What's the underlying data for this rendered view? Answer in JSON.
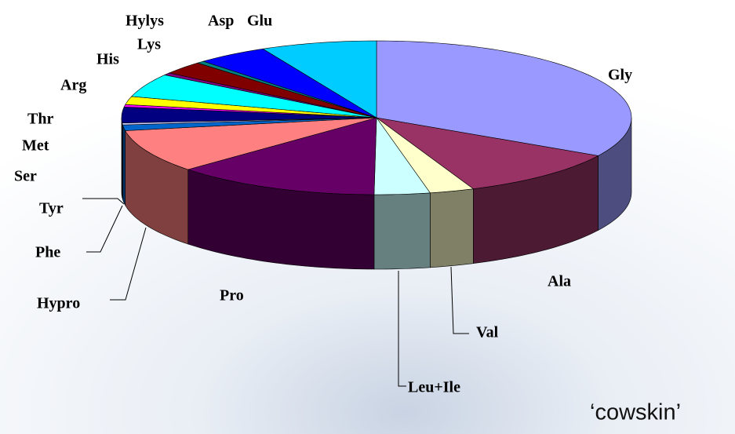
{
  "chart_data": {
    "type": "pie3d",
    "categories": [
      "Gly",
      "Ala",
      "Val",
      "Leu+Ile",
      "Pro",
      "Hypro",
      "Phe",
      "Tyr",
      "Ser",
      "Met",
      "Thr",
      "Arg",
      "His",
      "Lys",
      "Hylys",
      "Asp",
      "Glu"
    ],
    "values": [
      33,
      10.5,
      2.8,
      3.5,
      13,
      9,
      1.2,
      0.4,
      3.3,
      0.5,
      1.7,
      4.9,
      0.5,
      2.7,
      0.5,
      4.5,
      7.3
    ],
    "colors": [
      "#9999ff",
      "#993366",
      "#ffffcc",
      "#ccffff",
      "#660066",
      "#ff8080",
      "#0066cc",
      "#ccccff",
      "#000080",
      "#ff00ff",
      "#ffff00",
      "#00ffff",
      "#800080",
      "#800000",
      "#008080",
      "#0000ff",
      "#00ccff"
    ],
    "annotation": "‘cowskin’"
  }
}
